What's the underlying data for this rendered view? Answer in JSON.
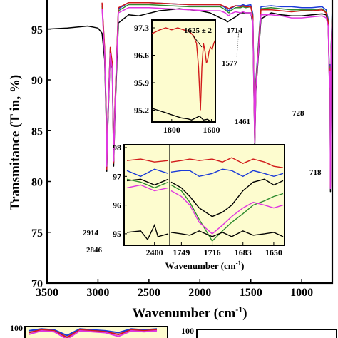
{
  "chart_data": [
    {
      "type": "line",
      "xlabel": "Wavenumber (cm",
      "xlabel_sup": "-1",
      "xlabel_end": ")",
      "ylabel": "Transmitance (T in, %)",
      "xlim": [
        3500,
        700
      ],
      "x_reversed": true,
      "ylim": [
        70,
        98
      ],
      "x_ticks": [
        "3500",
        "3000",
        "2500",
        "2000",
        "1500",
        "1000"
      ],
      "y_ticks": [
        "70",
        "75",
        "80",
        "85",
        "90",
        "95"
      ],
      "colors": [
        "#000000",
        "#1a3ad8",
        "#2e8b2e",
        "#d11a1a",
        "#e037e0"
      ],
      "annotations": [
        "2914",
        "2846",
        "1714",
        "1577",
        "1461",
        "728",
        "718"
      ],
      "series": [
        {
          "color": "#000000",
          "x": [
            3500,
            3300,
            3100,
            3000,
            2960,
            2935,
            2920,
            2914,
            2905,
            2880,
            2860,
            2846,
            2835,
            2800,
            2700,
            2600,
            2400,
            2200,
            2000,
            1900,
            1800,
            1750,
            1730,
            1714,
            1700,
            1650,
            1600,
            1577,
            1500,
            1480,
            1470,
            1461,
            1450,
            1400,
            1300,
            1200,
            1100,
            1000,
            900,
            800,
            760,
            740,
            728,
            722,
            718,
            712,
            700
          ],
          "y": [
            95,
            95.1,
            95.3,
            95.1,
            94.6,
            92.0,
            86.0,
            81.0,
            85.0,
            92.5,
            91.0,
            81.5,
            86.0,
            95.6,
            96.4,
            96.3,
            96.8,
            97.0,
            96.8,
            96.6,
            96.1,
            95.9,
            95.7,
            95.8,
            95.9,
            96.2,
            96.6,
            96.6,
            96.6,
            95.5,
            89.0,
            83.5,
            89.0,
            96.0,
            96.6,
            96.4,
            96.3,
            96.3,
            96.4,
            96.5,
            96.4,
            95.5,
            89.5,
            91.0,
            79.0,
            92.5,
            96.5
          ]
        },
        {
          "color": "#1a3ad8",
          "x": [
            2960,
            2935,
            2920,
            2914,
            2905,
            2880,
            2860,
            2846,
            2835,
            2800,
            2700,
            2500,
            2300,
            2100,
            1900,
            1800,
            1750,
            1730,
            1714,
            1700,
            1650,
            1600,
            1577,
            1550,
            1500,
            1480,
            1470,
            1461,
            1450,
            1400,
            1300,
            1200,
            1100,
            1000,
            900,
            800,
            760,
            740,
            728,
            722,
            718,
            712,
            700
          ],
          "y": [
            97.5,
            93.0,
            87.0,
            82.0,
            86.0,
            93.0,
            91.5,
            82.5,
            87.0,
            97.0,
            97.6,
            97.6,
            97.5,
            97.4,
            97.4,
            97.4,
            97.1,
            96.9,
            96.8,
            97.0,
            97.3,
            97.3,
            97.4,
            97.3,
            97.4,
            96.5,
            90.0,
            84.5,
            90.0,
            97.2,
            97.3,
            97.2,
            97.2,
            97.1,
            97.1,
            97.2,
            96.9,
            96.0,
            90.0,
            91.5,
            80.0,
            93.0,
            97.2
          ]
        },
        {
          "color": "#2e8b2e",
          "x": [
            2960,
            2935,
            2920,
            2914,
            2905,
            2880,
            2860,
            2846,
            2835,
            2800,
            2700,
            2500,
            2300,
            2100,
            1900,
            1800,
            1750,
            1730,
            1714,
            1700,
            1650,
            1600,
            1577,
            1550,
            1500,
            1480,
            1470,
            1461,
            1450,
            1400,
            1300,
            1200,
            1100,
            1000,
            900,
            800,
            760,
            740,
            728,
            722,
            718,
            712,
            700
          ],
          "y": [
            97.3,
            92.8,
            86.8,
            81.8,
            85.8,
            92.8,
            91.3,
            82.3,
            86.8,
            96.8,
            97.4,
            97.4,
            97.3,
            97.2,
            97.2,
            97.2,
            96.9,
            96.7,
            96.6,
            96.8,
            97.1,
            97.1,
            97.2,
            97.1,
            97.2,
            96.3,
            89.8,
            84.3,
            89.8,
            97.0,
            97.1,
            97.0,
            96.9,
            96.9,
            96.9,
            97.0,
            96.7,
            95.8,
            89.8,
            91.3,
            79.8,
            92.8,
            97.0
          ]
        },
        {
          "color": "#d11a1a",
          "x": [
            2960,
            2935,
            2920,
            2914,
            2905,
            2880,
            2860,
            2846,
            2835,
            2800,
            2700,
            2500,
            2300,
            2100,
            1900,
            1800,
            1750,
            1730,
            1714,
            1700,
            1650,
            1600,
            1577,
            1550,
            1500,
            1480,
            1470,
            1461,
            1450,
            1400,
            1300,
            1200,
            1100,
            1000,
            900,
            800,
            760,
            740,
            728,
            722,
            718,
            712,
            700
          ],
          "y": [
            97.6,
            93.2,
            87.2,
            81.2,
            85.6,
            93.2,
            91.7,
            81.8,
            87.2,
            97.1,
            97.6,
            97.6,
            97.5,
            97.4,
            97.4,
            97.4,
            97.2,
            97.1,
            97.0,
            97.1,
            97.3,
            97.2,
            97.3,
            97.2,
            97.2,
            96.2,
            89.5,
            84.0,
            89.5,
            96.9,
            96.9,
            96.8,
            96.7,
            96.8,
            96.8,
            96.9,
            96.6,
            95.7,
            89.6,
            91.1,
            79.5,
            92.6,
            96.8
          ]
        },
        {
          "color": "#e037e0",
          "x": [
            2960,
            2935,
            2920,
            2914,
            2905,
            2880,
            2860,
            2846,
            2835,
            2800,
            2700,
            2500,
            2300,
            2100,
            1900,
            1800,
            1750,
            1730,
            1714,
            1700,
            1650,
            1600,
            1577,
            1550,
            1500,
            1480,
            1470,
            1461,
            1450,
            1400,
            1300,
            1200,
            1100,
            1000,
            900,
            800,
            760,
            740,
            728,
            722,
            718,
            712,
            700
          ],
          "y": [
            97.0,
            92.6,
            86.6,
            81.5,
            85.5,
            92.6,
            91.1,
            82.0,
            86.6,
            96.6,
            97.1,
            97.1,
            97.0,
            96.9,
            96.8,
            96.8,
            96.6,
            96.4,
            96.3,
            96.5,
            96.7,
            96.6,
            96.7,
            96.6,
            96.6,
            95.8,
            89.3,
            83.8,
            89.3,
            96.4,
            96.4,
            96.3,
            96.1,
            96.1,
            96.2,
            96.3,
            96.1,
            95.3,
            89.3,
            90.8,
            79.3,
            92.4,
            96.4
          ]
        }
      ]
    },
    {
      "type": "line",
      "inset": "upper",
      "xlim": [
        1900,
        1580
      ],
      "x_reversed": true,
      "ylim": [
        94.9,
        97.5
      ],
      "x_ticks": [
        "1800",
        "1600"
      ],
      "y_ticks": [
        "95.2",
        "95.9",
        "96.6",
        "97.3"
      ],
      "annotation": "1625 ± 2",
      "series": [
        {
          "color": "#d11a1a",
          "x": [
            1900,
            1860,
            1830,
            1800,
            1770,
            1740,
            1710,
            1690,
            1675,
            1665,
            1655,
            1648,
            1640,
            1632,
            1625,
            1618,
            1612,
            1604,
            1596,
            1588,
            1580
          ],
          "y": [
            97.15,
            97.25,
            97.3,
            97.25,
            97.3,
            97.25,
            97.2,
            97.1,
            96.9,
            96.3,
            95.2,
            96.3,
            96.9,
            96.7,
            96.4,
            96.5,
            96.7,
            96.8,
            96.75,
            96.9,
            97.0
          ]
        },
        {
          "color": "#000000",
          "x": [
            1900,
            1870,
            1840,
            1810,
            1780,
            1750,
            1720,
            1700,
            1680,
            1660,
            1640,
            1620,
            1600,
            1580
          ],
          "y": [
            95.25,
            95.2,
            95.15,
            95.1,
            95.05,
            95.0,
            94.98,
            94.95,
            95.0,
            95.05,
            94.95,
            94.97,
            94.9,
            94.92
          ]
        }
      ]
    },
    {
      "type": "line",
      "inset": "lower",
      "x_ticks": [
        "2400",
        "1749",
        "1716",
        "1683",
        "1650"
      ],
      "y_ticks": [
        "95",
        "96",
        "97",
        "98"
      ],
      "ylim": [
        94.6,
        98.1
      ],
      "xlabel": "Wavenumber (cm",
      "xlabel_sup": "-1",
      "xlabel_end": ")",
      "series": [
        {
          "color": "#d11a1a",
          "x": [
            2480,
            2440,
            2400,
            2360,
            1760,
            1749,
            1740,
            1730,
            1716,
            1705,
            1695,
            1683,
            1672,
            1660,
            1650,
            1640
          ],
          "y": [
            97.55,
            97.6,
            97.5,
            97.55,
            97.5,
            97.55,
            97.6,
            97.55,
            97.6,
            97.5,
            97.65,
            97.45,
            97.6,
            97.5,
            97.35,
            97.3
          ]
        },
        {
          "color": "#1a3ad8",
          "x": [
            2480,
            2440,
            2400,
            2360,
            1760,
            1749,
            1740,
            1730,
            1716,
            1705,
            1695,
            1683,
            1672,
            1660,
            1650,
            1640
          ],
          "y": [
            97.2,
            97.0,
            97.25,
            97.1,
            97.15,
            97.2,
            97.2,
            97.0,
            97.1,
            97.25,
            97.2,
            97.0,
            97.2,
            97.1,
            97.0,
            97.1
          ]
        },
        {
          "color": "#000000",
          "x": [
            2480,
            2440,
            2400,
            2360,
            1760,
            1749,
            1740,
            1730,
            1716,
            1705,
            1695,
            1683,
            1672,
            1660,
            1650,
            1640
          ],
          "y": [
            96.85,
            96.9,
            96.7,
            96.9,
            96.8,
            96.6,
            96.3,
            95.9,
            95.6,
            95.75,
            96.0,
            96.5,
            96.8,
            96.9,
            96.7,
            96.85
          ]
        },
        {
          "color": "#2e8b2e",
          "x": [
            2480,
            2440,
            2400,
            2360,
            1760,
            1749,
            1740,
            1730,
            1716,
            1705,
            1695,
            1683,
            1672,
            1660,
            1650,
            1640
          ],
          "y": [
            96.9,
            96.8,
            96.6,
            96.8,
            96.7,
            96.5,
            96.1,
            95.5,
            94.75,
            95.1,
            95.4,
            95.7,
            96.0,
            96.15,
            96.3,
            96.4
          ]
        },
        {
          "color": "#e037e0",
          "x": [
            2480,
            2440,
            2400,
            2360,
            1760,
            1749,
            1740,
            1730,
            1716,
            1705,
            1695,
            1683,
            1672,
            1660,
            1650,
            1640
          ],
          "y": [
            96.6,
            96.7,
            96.5,
            96.6,
            96.5,
            96.3,
            96.0,
            95.4,
            95.0,
            95.3,
            95.6,
            95.9,
            96.1,
            96.0,
            95.9,
            96.0
          ]
        },
        {
          "color": "#000000",
          "x": [
            2480,
            2440,
            2420,
            2400,
            2390,
            2360,
            1760,
            1749,
            1740,
            1730,
            1716,
            1705,
            1695,
            1683,
            1672,
            1660,
            1650,
            1640
          ],
          "y": [
            95.05,
            95.1,
            94.8,
            95.3,
            94.9,
            95.0,
            95.05,
            95.0,
            94.95,
            95.1,
            94.9,
            95.05,
            94.9,
            95.1,
            94.95,
            95.0,
            95.05,
            94.9
          ]
        }
      ]
    },
    {
      "type": "line",
      "panel": "bottom-left",
      "y_ticks": [
        "100"
      ],
      "series": [
        {
          "color": "#1a3ad8",
          "x": [
            0,
            1,
            2,
            3,
            4,
            5,
            6,
            7,
            8,
            9,
            10
          ],
          "y": [
            97,
            99,
            98,
            92,
            99,
            98,
            97,
            95,
            99,
            98,
            99
          ]
        },
        {
          "color": "#d11a1a",
          "x": [
            0,
            1,
            2,
            3,
            4,
            5,
            6,
            7,
            8,
            9,
            10
          ],
          "y": [
            95,
            98,
            97,
            90,
            98,
            97,
            96,
            93,
            98,
            97,
            98
          ]
        },
        {
          "color": "#e037e0",
          "x": [
            0,
            1,
            2,
            3,
            4,
            5,
            6,
            7,
            8,
            9,
            10
          ],
          "y": [
            93,
            97,
            96,
            88,
            97,
            96,
            95,
            91,
            97,
            96,
            97
          ]
        }
      ]
    },
    {
      "type": "line",
      "panel": "bottom-right",
      "y_ticks": [
        "100"
      ],
      "series": []
    }
  ]
}
